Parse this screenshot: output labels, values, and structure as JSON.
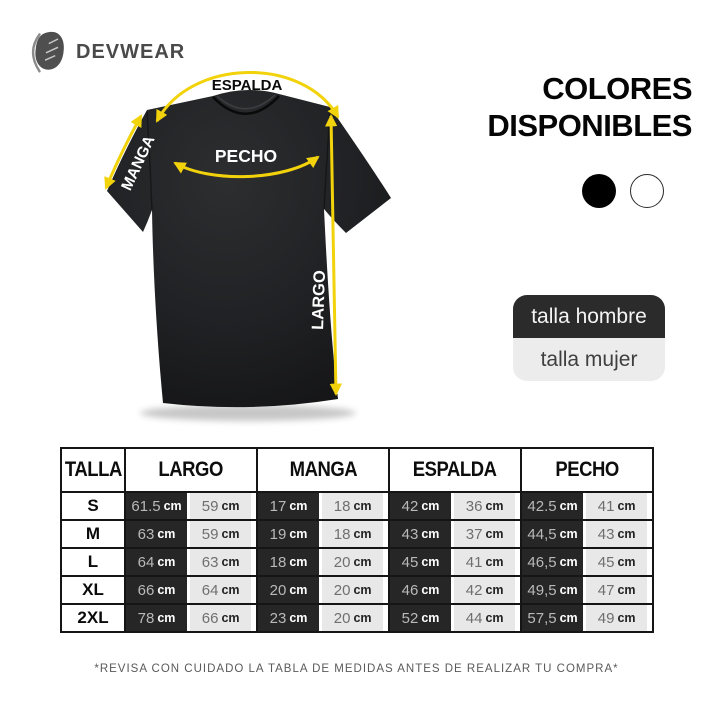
{
  "brand": {
    "name": "DEVWEAR"
  },
  "shirt_diagram": {
    "labels": {
      "espalda": "ESPALDA",
      "pecho": "PECHO",
      "manga": "MANGA",
      "largo": "LARGO"
    },
    "arrow_color": "#F2D30B",
    "shirt_color": "#1E1F21"
  },
  "colors_section": {
    "title_line1": "COLORES",
    "title_line2": "DISPONIBLES",
    "swatches": [
      {
        "name": "negro",
        "hex": "#000000"
      },
      {
        "name": "blanco",
        "hex": "#ffffff"
      }
    ]
  },
  "size_toggle": {
    "hombre_label": "talla hombre",
    "mujer_label": "talla mujer"
  },
  "size_table": {
    "headers": [
      "TALLA",
      "LARGO",
      "MANGA",
      "ESPALDA",
      "PECHO"
    ],
    "unit": "cm",
    "rows": [
      {
        "talla": "S",
        "values": {
          "largo": [
            "61.5",
            "59"
          ],
          "manga": [
            "17",
            "18"
          ],
          "espalda": [
            "42",
            "36"
          ],
          "pecho": [
            "42.5",
            "41"
          ]
        }
      },
      {
        "talla": "M",
        "values": {
          "largo": [
            "63",
            "59"
          ],
          "manga": [
            "19",
            "18"
          ],
          "espalda": [
            "43",
            "37"
          ],
          "pecho": [
            "44,5",
            "43"
          ]
        }
      },
      {
        "talla": "L",
        "values": {
          "largo": [
            "64",
            "63"
          ],
          "manga": [
            "18",
            "20"
          ],
          "espalda": [
            "45",
            "41"
          ],
          "pecho": [
            "46,5",
            "45"
          ]
        }
      },
      {
        "talla": "XL",
        "values": {
          "largo": [
            "66",
            "64"
          ],
          "manga": [
            "20",
            "20"
          ],
          "espalda": [
            "46",
            "42"
          ],
          "pecho": [
            "49,5",
            "47"
          ]
        }
      },
      {
        "talla": "2XL",
        "values": {
          "largo": [
            "78",
            "66"
          ],
          "manga": [
            "23",
            "20"
          ],
          "espalda": [
            "52",
            "44"
          ],
          "pecho": [
            "57,5",
            "49"
          ]
        }
      }
    ]
  },
  "disclaimer": "*REVISA CON CUIDADO LA TABLA DE MEDIDAS ANTES DE REALIZAR TU COMPRA*"
}
